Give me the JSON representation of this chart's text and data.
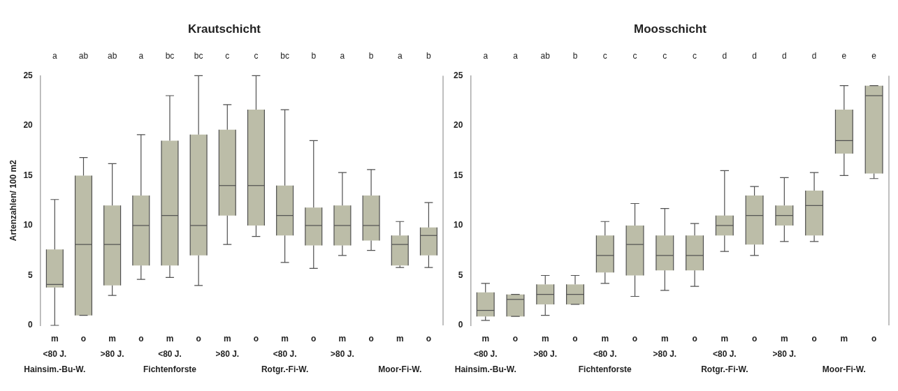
{
  "chart_data": [
    {
      "type": "box",
      "title": "Krautschicht",
      "ylabel": "Artenzahlen/ 100 m2",
      "color": "#bcbda8",
      "ylim": [
        0,
        25
      ],
      "yticks": [
        0,
        5,
        10,
        15,
        20,
        25
      ],
      "categories": [
        "m\n<80 J.\nHainsim.-Bu-W.",
        "o",
        "m\n>80 J.",
        "o",
        "m\n<80 J.\nFichtenforste",
        "o",
        "m\n>80 J.",
        "o",
        "m\n<80 J.\nRotgr.-Fi-W.",
        "o",
        "m\n>80 J.",
        "o",
        "m\n\nMoor-Fi-W.",
        "o"
      ],
      "boxes": [
        {
          "low": 0,
          "q1": 3.8,
          "median": 4.1,
          "q3": 7.6,
          "high": 12.6
        },
        {
          "low": 1,
          "q1": 1,
          "median": 8.1,
          "q3": 15,
          "high": 16.8
        },
        {
          "low": 3,
          "q1": 4,
          "median": 8.1,
          "q3": 12,
          "high": 16.2
        },
        {
          "low": 4.6,
          "q1": 6,
          "median": 10,
          "q3": 13,
          "high": 19.1
        },
        {
          "low": 4.8,
          "q1": 6,
          "median": 11,
          "q3": 18.5,
          "high": 23
        },
        {
          "low": 4,
          "q1": 7,
          "median": 10,
          "q3": 19.1,
          "high": 25
        },
        {
          "low": 8.1,
          "q1": 11,
          "median": 14,
          "q3": 19.6,
          "high": 22.1
        },
        {
          "low": 8.9,
          "q1": 10,
          "median": 14,
          "q3": 21.6,
          "high": 25
        },
        {
          "low": 6.3,
          "q1": 9,
          "median": 11,
          "q3": 14,
          "high": 21.6
        },
        {
          "low": 5.7,
          "q1": 8,
          "median": 10,
          "q3": 11.8,
          "high": 18.5
        },
        {
          "low": 7,
          "q1": 8,
          "median": 10,
          "q3": 12,
          "high": 15.3
        },
        {
          "low": 7.5,
          "q1": 8.5,
          "median": 10,
          "q3": 13,
          "high": 15.6
        },
        {
          "low": 5.8,
          "q1": 6,
          "median": 8.1,
          "q3": 9,
          "high": 10.4
        },
        {
          "low": 5.8,
          "q1": 7,
          "median": 9,
          "q3": 9.8,
          "high": 12.3
        }
      ],
      "annotations": [
        "a",
        "ab",
        "ab",
        "a",
        "bc",
        "bc",
        "c",
        "c",
        "bc",
        "b",
        "a",
        "b",
        "a",
        "b"
      ]
    },
    {
      "type": "box",
      "title": "Moosschicht",
      "color": "#bcbda8",
      "ylim": [
        0,
        25
      ],
      "yticks": [
        0,
        5,
        10,
        15,
        20,
        25
      ],
      "categories": [
        "m\n<80 J.\nHainsim.-Bu-W.",
        "o",
        "m\n>80 J.",
        "o",
        "m\n<80 J.\nFichtenforste",
        "o",
        "m\n>80 J.",
        "o",
        "m\n<80 J.\nRotgr.-Fi-W.",
        "o",
        "m\n>80 J.",
        "o",
        "m\n\nMoor-Fi-W.",
        "o"
      ],
      "boxes": [
        {
          "low": 0.5,
          "q1": 0.9,
          "median": 1.5,
          "q3": 3.3,
          "high": 4.2
        },
        {
          "low": 0.9,
          "q1": 0.9,
          "median": 2.6,
          "q3": 3.1,
          "high": 3.1
        },
        {
          "low": 1,
          "q1": 2.1,
          "median": 3.1,
          "q3": 4.1,
          "high": 5
        },
        {
          "low": 2.1,
          "q1": 2.1,
          "median": 3.1,
          "q3": 4.1,
          "high": 5
        },
        {
          "low": 4.2,
          "q1": 5.3,
          "median": 7,
          "q3": 9,
          "high": 10.4
        },
        {
          "low": 2.9,
          "q1": 5,
          "median": 8.1,
          "q3": 10,
          "high": 12.2
        },
        {
          "low": 3.5,
          "q1": 5.5,
          "median": 7,
          "q3": 9,
          "high": 11.7
        },
        {
          "low": 3.9,
          "q1": 5.5,
          "median": 7,
          "q3": 9,
          "high": 10.2
        },
        {
          "low": 7.4,
          "q1": 9,
          "median": 10,
          "q3": 11,
          "high": 15.5
        },
        {
          "low": 7,
          "q1": 8.1,
          "median": 11,
          "q3": 13,
          "high": 13.9
        },
        {
          "low": 8.4,
          "q1": 10,
          "median": 11,
          "q3": 12,
          "high": 14.8
        },
        {
          "low": 8.4,
          "q1": 9,
          "median": 12,
          "q3": 13.5,
          "high": 15.3
        },
        {
          "low": 15,
          "q1": 17.2,
          "median": 18.5,
          "q3": 21.6,
          "high": 24
        },
        {
          "low": 14.7,
          "q1": 15.2,
          "median": 23,
          "q3": 24,
          "high": 24
        }
      ],
      "annotations": [
        "a",
        "a",
        "ab",
        "b",
        "c",
        "c",
        "c",
        "c",
        "d",
        "d",
        "d",
        "d",
        "e",
        "e"
      ]
    }
  ]
}
